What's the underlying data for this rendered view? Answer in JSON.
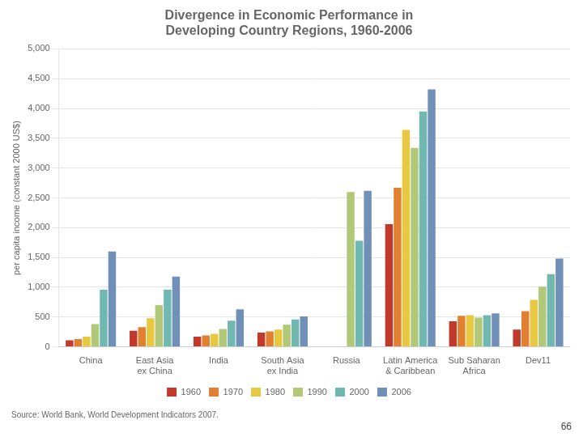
{
  "chart_data": {
    "type": "bar",
    "title": "Divergence in Economic Performance in\nDeveloping Country Regions, 1960-2006",
    "ylabel": "per capita income (constant 2000 US$)",
    "annotations": [
      "Source: World Bank, World Development Indicators 2007.",
      "66"
    ],
    "categories": [
      "China",
      "East Asia\nex China",
      "India",
      "South Asia\nex India",
      "Russia",
      "Latin America\n& Caribbean",
      "Sub Saharan\nAfrica",
      "Dev11"
    ],
    "series": [
      {
        "name": "1960",
        "color": "#c0392b",
        "values": [
          110,
          270,
          170,
          240,
          0,
          2060,
          430,
          290
        ]
      },
      {
        "name": "1970",
        "color": "#e08030",
        "values": [
          130,
          330,
          190,
          260,
          0,
          2670,
          520,
          600
        ]
      },
      {
        "name": "1980",
        "color": "#e8c840",
        "values": [
          170,
          480,
          220,
          290,
          0,
          3640,
          530,
          790
        ]
      },
      {
        "name": "1990",
        "color": "#b0c878",
        "values": [
          380,
          700,
          300,
          370,
          2600,
          3340,
          490,
          1010
        ]
      },
      {
        "name": "2000",
        "color": "#70b8b0",
        "values": [
          960,
          960,
          440,
          460,
          1780,
          3950,
          530,
          1220
        ]
      },
      {
        "name": "2006",
        "color": "#7090b8",
        "values": [
          1600,
          1180,
          630,
          510,
          2620,
          4320,
          560,
          1480
        ]
      }
    ],
    "ylim": [
      0,
      5000
    ],
    "yticks": [
      0,
      500,
      {
        "value": 1000,
        "label": "1,000"
      },
      {
        "value": 1500,
        "label": "1,500"
      },
      {
        "value": 2000,
        "label": "2,000"
      },
      {
        "value": 2500,
        "label": "2,500"
      },
      {
        "value": 3000,
        "label": "3,000"
      },
      {
        "value": 3500,
        "label": "3,500"
      },
      {
        "value": 4000,
        "label": "4,000"
      },
      {
        "value": 4500,
        "label": "4,500"
      },
      {
        "value": 5000,
        "label": "5,000"
      }
    ],
    "grid": true,
    "legend": "bottom"
  }
}
